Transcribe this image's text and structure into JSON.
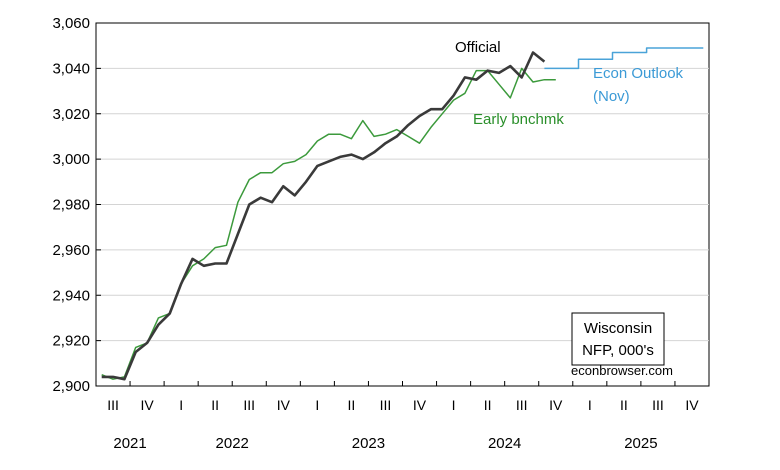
{
  "chart_data": {
    "type": "line",
    "title": "",
    "xlabel": "",
    "ylabel": "",
    "ylim": [
      2900,
      3060
    ],
    "yticks": [
      2900,
      2920,
      2940,
      2960,
      2980,
      3000,
      3020,
      3040,
      3060
    ],
    "ytick_labels": [
      "2,900",
      "2,920",
      "2,940",
      "2,960",
      "2,980",
      "3,000",
      "3,020",
      "3,040",
      "3,060"
    ],
    "x_start": "2021-07",
    "x_end": "2025-12",
    "quarter_ticks": [
      {
        "label": "III",
        "month": "2021-07"
      },
      {
        "label": "IV",
        "month": "2021-10"
      },
      {
        "label": "I",
        "month": "2022-01"
      },
      {
        "label": "II",
        "month": "2022-04"
      },
      {
        "label": "III",
        "month": "2022-07"
      },
      {
        "label": "IV",
        "month": "2022-10"
      },
      {
        "label": "I",
        "month": "2023-01"
      },
      {
        "label": "II",
        "month": "2023-04"
      },
      {
        "label": "III",
        "month": "2023-07"
      },
      {
        "label": "IV",
        "month": "2023-10"
      },
      {
        "label": "I",
        "month": "2024-01"
      },
      {
        "label": "II",
        "month": "2024-04"
      },
      {
        "label": "III",
        "month": "2024-07"
      },
      {
        "label": "IV",
        "month": "2024-10"
      },
      {
        "label": "I",
        "month": "2025-01"
      },
      {
        "label": "II",
        "month": "2025-04"
      },
      {
        "label": "III",
        "month": "2025-07"
      },
      {
        "label": "IV",
        "month": "2025-10"
      }
    ],
    "years": [
      "2021",
      "2022",
      "2023",
      "2024",
      "2025"
    ],
    "grid": true,
    "series": [
      {
        "name": "Official",
        "color": "#3a3a3a",
        "x": [
          "2021-07",
          "2021-08",
          "2021-09",
          "2021-10",
          "2021-11",
          "2021-12",
          "2022-01",
          "2022-02",
          "2022-03",
          "2022-04",
          "2022-05",
          "2022-06",
          "2022-07",
          "2022-08",
          "2022-09",
          "2022-10",
          "2022-11",
          "2022-12",
          "2023-01",
          "2023-02",
          "2023-03",
          "2023-04",
          "2023-05",
          "2023-06",
          "2023-07",
          "2023-08",
          "2023-09",
          "2023-10",
          "2023-11",
          "2023-12",
          "2024-01",
          "2024-02",
          "2024-03",
          "2024-04",
          "2024-05",
          "2024-06",
          "2024-07",
          "2024-08",
          "2024-09",
          "2024-10"
        ],
        "values": [
          2904,
          2904,
          2903,
          2915,
          2919,
          2927,
          2932,
          2945,
          2956,
          2953,
          2954,
          2954,
          2967,
          2980,
          2983,
          2981,
          2988,
          2984,
          2990,
          2997,
          2999,
          3001,
          3002,
          3000,
          3003,
          3007,
          3010,
          3015,
          3019,
          3022,
          3022,
          3028,
          3036,
          3035,
          3039,
          3038,
          3041,
          3036,
          3047,
          3043
        ]
      },
      {
        "name": "Early bnchmk",
        "color": "#3c9a3c",
        "x": [
          "2021-07",
          "2021-08",
          "2021-09",
          "2021-10",
          "2021-11",
          "2021-12",
          "2022-01",
          "2022-02",
          "2022-03",
          "2022-04",
          "2022-05",
          "2022-06",
          "2022-07",
          "2022-08",
          "2022-09",
          "2022-10",
          "2022-11",
          "2022-12",
          "2023-01",
          "2023-02",
          "2023-03",
          "2023-04",
          "2023-05",
          "2023-06",
          "2023-07",
          "2023-08",
          "2023-09",
          "2023-10",
          "2023-11",
          "2023-12",
          "2024-01",
          "2024-02",
          "2024-03",
          "2024-04",
          "2024-05",
          "2024-06",
          "2024-07",
          "2024-08",
          "2024-09",
          "2024-10",
          "2024-11"
        ],
        "values": [
          2905,
          2903,
          2904,
          2917,
          2919,
          2930,
          2932,
          2945,
          2953,
          2956,
          2961,
          2962,
          2981,
          2991,
          2994,
          2994,
          2998,
          2999,
          3002,
          3008,
          3011,
          3011,
          3009,
          3017,
          3010,
          3011,
          3013,
          3010,
          3007,
          3014,
          3020,
          3026,
          3029,
          3039,
          3039,
          3033,
          3027,
          3040,
          3034,
          3035,
          3035
        ]
      },
      {
        "name": "Econ Outlook (Nov)",
        "color": "#4aa3d8",
        "step": true,
        "x": [
          "2024-10",
          "2024-11",
          "2024-12",
          "2025-01",
          "2025-02",
          "2025-03",
          "2025-04",
          "2025-05",
          "2025-06",
          "2025-07",
          "2025-08",
          "2025-09",
          "2025-10",
          "2025-11",
          "2025-12"
        ],
        "values": [
          3040,
          3040,
          3040,
          3044,
          3044,
          3044,
          3047,
          3047,
          3047,
          3049,
          3049,
          3049,
          3049,
          3049,
          3049
        ]
      }
    ],
    "annotations": {
      "official_label": "Official",
      "early_label": "Early bnchmk",
      "outlook_label_line1": "Econ Outlook",
      "outlook_label_line2": "(Nov)"
    },
    "legend_box": {
      "line1": "Wisconsin",
      "line2": "NFP, 000's"
    },
    "credit": "econbrowser.com"
  }
}
